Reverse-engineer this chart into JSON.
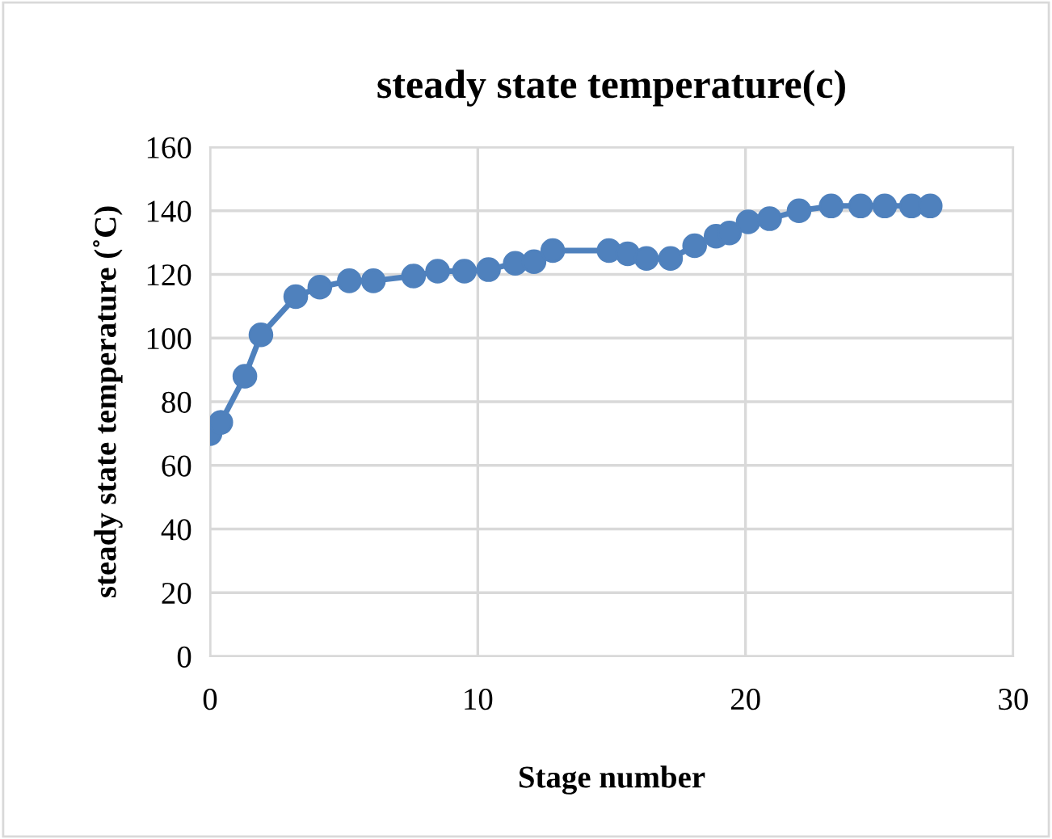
{
  "chart_data": {
    "type": "line",
    "title": "steady state temperature(c)",
    "xlabel": "Stage number",
    "ylabel": "steady state temperature (˚C)",
    "x": [
      0,
      0.4,
      1.3,
      1.9,
      3.2,
      4.1,
      5.2,
      6.1,
      7.6,
      8.5,
      9.5,
      10.4,
      11.4,
      12.1,
      12.8,
      14.9,
      15.6,
      16.3,
      17.2,
      18.1,
      18.9,
      19.4,
      20.1,
      20.9,
      22,
      23.2,
      24.3,
      25.2,
      26.2,
      26.9
    ],
    "series": [
      {
        "color": "#4f81bd",
        "values": [
          70,
          73.5,
          88,
          101,
          113,
          116,
          118,
          118,
          119.5,
          121,
          121,
          121.5,
          123.5,
          124,
          127.5,
          127.5,
          126.5,
          125,
          125,
          129,
          132,
          133,
          136.5,
          137.5,
          140,
          141.5,
          141.5,
          141.5,
          141.5,
          141.5
        ]
      }
    ],
    "xlim": [
      0,
      30
    ],
    "xticks": [
      0,
      10,
      20,
      30
    ],
    "ylim": [
      0,
      160
    ],
    "yticks": [
      0,
      20,
      40,
      60,
      80,
      100,
      120,
      140,
      160
    ],
    "grid": true,
    "marker": "circle",
    "line_style": "solid",
    "legend": false
  }
}
